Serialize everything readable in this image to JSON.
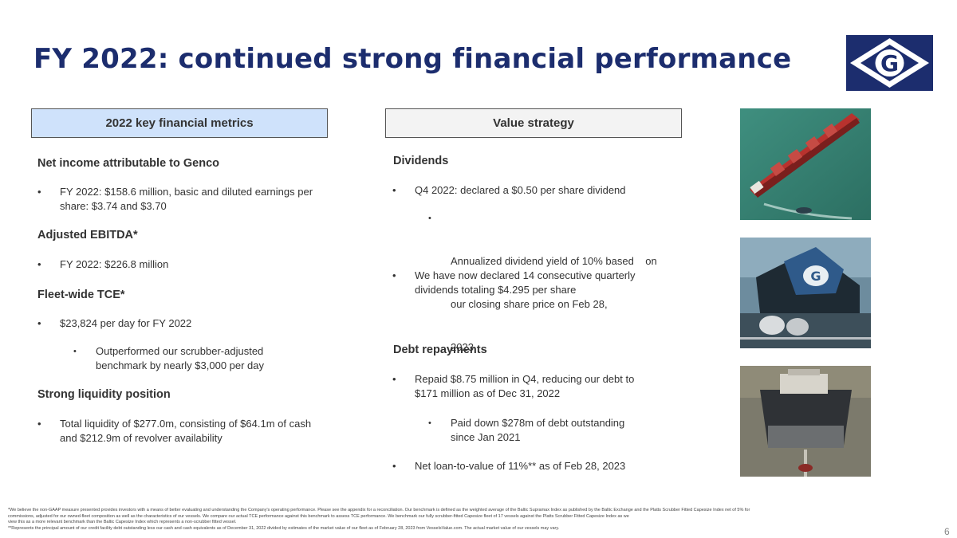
{
  "title": "FY 2022: continued strong financial performance",
  "logo_letter": "G",
  "left_header": "2022 key financial metrics",
  "right_header": "Value strategy",
  "net_income": {
    "heading": "Net income attributable to Genco",
    "bullet_line1": "FY 2022: $158.6 million, basic and diluted earnings per",
    "bullet_line2": "share: $3.74 and $3.70"
  },
  "ebitda": {
    "heading": "Adjusted EBITDA*",
    "bullet": "FY 2022: $226.8 million"
  },
  "tce": {
    "heading": "Fleet-wide TCE*",
    "bullet": "$23,824 per day for FY 2022",
    "sub_line1": "Outperformed our scrubber-adjusted",
    "sub_line2": "benchmark by nearly $3,000 per day"
  },
  "liquidity": {
    "heading": "Strong liquidity position",
    "bullet_line1": "Total liquidity of $277.0m, consisting of $64.1m of  cash",
    "bullet_line2": "and $212.9m of revolver availability"
  },
  "dividends": {
    "heading": "Dividends",
    "bullet1": "Q4 2022: declared a $0.50 per share dividend",
    "sub_line1": "Annualized dividend yield of 10% based    on",
    "sub_line2": "our closing share price on Feb 28,",
    "sub_line3": "2023",
    "bullet2_line1": "We have now declared 14 consecutive quarterly",
    "bullet2_line2": "dividends totaling $4.295 per share"
  },
  "debt": {
    "heading": "Debt repayments",
    "bullet1_line1": "Repaid $8.75 million in Q4, reducing our debt to",
    "bullet1_line2": "$171 million as of Dec 31, 2022",
    "sub_line1": "Paid down $278m of debt outstanding",
    "sub_line2": "since Jan 2021",
    "bullet2": "Net loan-to-value of 11%** as of Feb 28, 2023"
  },
  "bullet_symbol": "•",
  "footnotes": {
    "line1": "*We believe the non-GAAP measure presented provides investors with a means of better evaluating and understanding the Company's operating performance. Please see the appendix for a reconciliation. Our benchmark is defined as the weighted average of the Baltic Supramax Index as published by the Baltic Exchange and the Platts Scrubber Fitted      Capesize Index net of 5% for",
    "line2": "commissions, adjusted for our owned-fleet composition as well as the characteristics of our vessels. We compare our actual TCE performance against this benchmark to assess TCE performance. We benchmark our fully scrubber-fitted Capesize fleet of 17 vessels against the Platts Scrubber Fitted Capesize Index as we",
    "line3": "view this as a more relevant benchmark than the Baltic Capesize Index which represents a non-scrubber fitted vessel.",
    "line4": "**Represents the principal amount of our credit facility debt outstanding less our cash and cash equivalents as of December 31, 2022 divided by estimates of the market value of our fleet as of February 28, 2023 from VesselsValue.com. The actual market value of our vessels may vary."
  },
  "page_number": "6",
  "colors": {
    "title": "#1c2d6e",
    "logo_background": "#1c2d6e",
    "left_header_fill": "#cfe2fb",
    "right_header_fill": "#f3f3f3"
  }
}
